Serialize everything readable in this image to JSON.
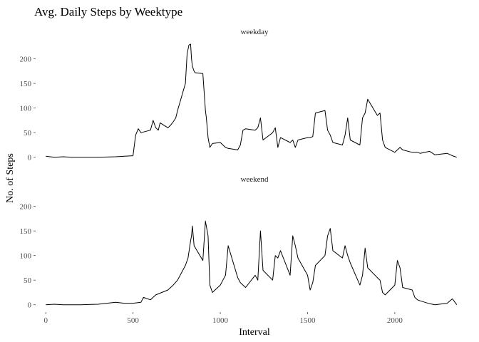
{
  "chart_data": {
    "type": "line",
    "title": "Avg. Daily Steps by Weektype",
    "xlabel": "Interval",
    "ylabel": "No. of Steps",
    "xlim": [
      -50,
      2360
    ],
    "ylim": [
      -12,
      240
    ],
    "x_ticks": [
      0,
      500,
      1000,
      1500,
      2000
    ],
    "x_tick_labels": [
      "0",
      "500",
      "1000",
      "1500",
      "2000"
    ],
    "y_ticks": [
      0,
      50,
      100,
      150,
      200
    ],
    "y_tick_labels": [
      "0",
      "50",
      "100",
      "150",
      "200"
    ],
    "grid": false,
    "legend": "none",
    "facets": [
      {
        "name": "weekday",
        "x": [
          0,
          50,
          100,
          150,
          200,
          300,
          400,
          450,
          500,
          515,
          530,
          545,
          600,
          615,
          630,
          645,
          655,
          700,
          715,
          730,
          745,
          755,
          800,
          810,
          820,
          830,
          835,
          840,
          850,
          855,
          900,
          915,
          920,
          930,
          940,
          955,
          1000,
          1015,
          1030,
          1045,
          1100,
          1115,
          1130,
          1145,
          1200,
          1215,
          1230,
          1245,
          1300,
          1315,
          1330,
          1345,
          1400,
          1415,
          1430,
          1445,
          1500,
          1515,
          1530,
          1545,
          1600,
          1615,
          1630,
          1645,
          1700,
          1715,
          1730,
          1745,
          1800,
          1815,
          1830,
          1845,
          1900,
          1915,
          1930,
          1945,
          2000,
          2015,
          2030,
          2045,
          2100,
          2115,
          2130,
          2145,
          2200,
          2230,
          2300,
          2330,
          2355
        ],
        "values": [
          2,
          0,
          1,
          0,
          0,
          0,
          1,
          2,
          3,
          45,
          58,
          50,
          55,
          75,
          60,
          55,
          70,
          60,
          65,
          72,
          80,
          95,
          150,
          210,
          228,
          230,
          200,
          185,
          175,
          172,
          170,
          95,
          80,
          40,
          20,
          28,
          30,
          25,
          20,
          18,
          15,
          25,
          55,
          58,
          55,
          60,
          80,
          35,
          50,
          60,
          20,
          40,
          30,
          35,
          20,
          35,
          40,
          40,
          42,
          90,
          95,
          55,
          45,
          30,
          25,
          45,
          80,
          35,
          25,
          80,
          90,
          118,
          85,
          90,
          35,
          20,
          10,
          15,
          20,
          15,
          10,
          10,
          10,
          8,
          12,
          5,
          8,
          3,
          0
        ]
      },
      {
        "name": "weekend",
        "x": [
          0,
          50,
          100,
          200,
          300,
          400,
          450,
          500,
          545,
          560,
          600,
          630,
          700,
          730,
          755,
          800,
          815,
          830,
          835,
          840,
          850,
          900,
          915,
          930,
          940,
          955,
          1000,
          1015,
          1030,
          1045,
          1100,
          1115,
          1130,
          1145,
          1200,
          1215,
          1230,
          1245,
          1300,
          1315,
          1330,
          1345,
          1400,
          1415,
          1430,
          1445,
          1500,
          1515,
          1530,
          1545,
          1600,
          1615,
          1630,
          1645,
          1700,
          1715,
          1730,
          1745,
          1800,
          1815,
          1830,
          1845,
          1900,
          1915,
          1930,
          1945,
          2000,
          2015,
          2030,
          2045,
          2100,
          2115,
          2130,
          2145,
          2200,
          2230,
          2300,
          2330,
          2355
        ],
        "values": [
          0,
          1,
          0,
          0,
          1,
          5,
          3,
          3,
          5,
          15,
          10,
          20,
          30,
          40,
          50,
          80,
          95,
          130,
          140,
          160,
          120,
          90,
          170,
          140,
          40,
          25,
          40,
          50,
          60,
          120,
          55,
          45,
          40,
          35,
          60,
          50,
          150,
          70,
          50,
          100,
          95,
          110,
          60,
          140,
          120,
          95,
          60,
          30,
          45,
          80,
          100,
          140,
          155,
          110,
          95,
          120,
          100,
          85,
          40,
          60,
          115,
          75,
          55,
          50,
          25,
          20,
          40,
          90,
          75,
          35,
          30,
          15,
          10,
          8,
          2,
          0,
          3,
          12,
          0
        ]
      }
    ]
  }
}
